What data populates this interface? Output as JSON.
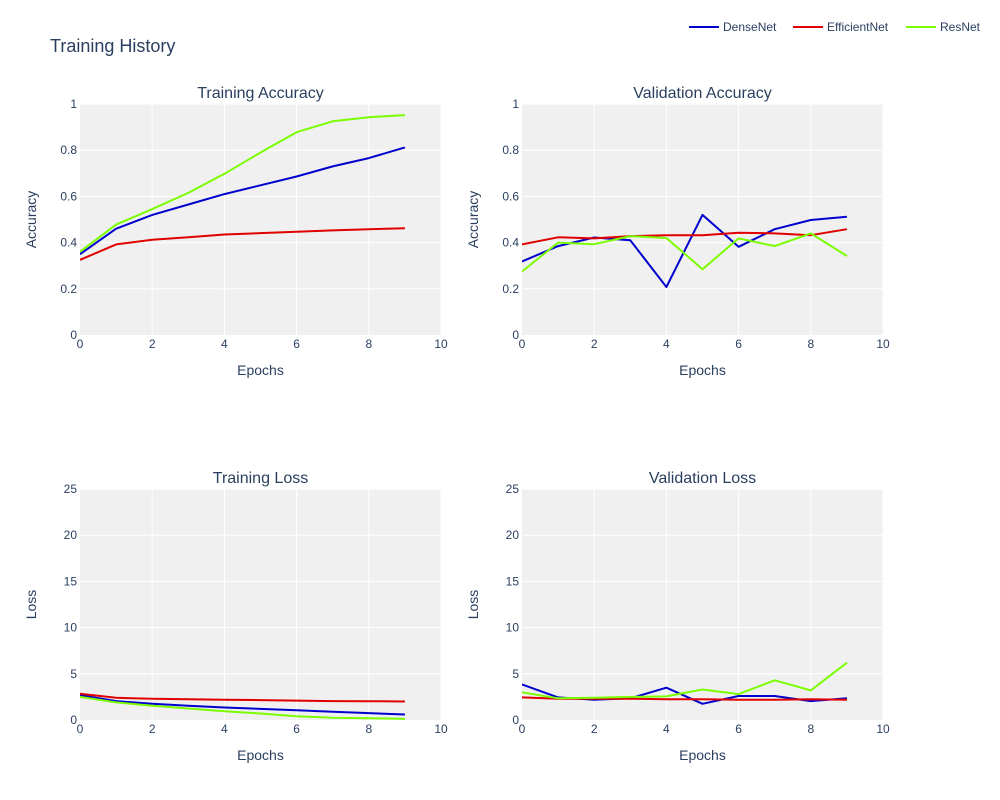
{
  "title": "Training History",
  "colors": {
    "DenseNet": "#0000cd",
    "EfficientNet": "#e00000",
    "ResNet": "#7cfc00",
    "plot_bg": "#f0f0f0",
    "grid": "#ffffff",
    "text": "#2a3f5f"
  },
  "chart_data": [
    {
      "type": "line",
      "title": "Training Accuracy",
      "xlabel": "Epochs",
      "ylabel": "Accuracy",
      "xlim": [
        0,
        10
      ],
      "ylim": [
        0,
        1
      ],
      "xticks": [
        0,
        2,
        4,
        6,
        8,
        10
      ],
      "yticks": [
        0,
        0.2,
        0.4,
        0.6,
        0.8,
        1
      ],
      "ytick_labels": [
        "0",
        "0.2",
        "0.4",
        "0.6",
        "0.8",
        "1"
      ],
      "x": [
        0,
        1,
        2,
        3,
        4,
        5,
        6,
        7,
        8,
        9
      ],
      "series": [
        {
          "name": "DenseNet",
          "values": [
            0.35,
            0.46,
            0.52,
            0.565,
            0.61,
            0.648,
            0.686,
            0.73,
            0.766,
            0.812
          ]
        },
        {
          "name": "EfficientNet",
          "values": [
            0.325,
            0.392,
            0.412,
            0.423,
            0.435,
            0.441,
            0.447,
            0.453,
            0.458,
            0.462
          ]
        },
        {
          "name": "ResNet",
          "values": [
            0.36,
            0.478,
            0.545,
            0.615,
            0.698,
            0.79,
            0.878,
            0.925,
            0.943,
            0.952
          ]
        }
      ]
    },
    {
      "type": "line",
      "title": "Validation Accuracy",
      "xlabel": "Epochs",
      "ylabel": "Accuracy",
      "xlim": [
        0,
        10
      ],
      "ylim": [
        0,
        1
      ],
      "xticks": [
        0,
        2,
        4,
        6,
        8,
        10
      ],
      "yticks": [
        0,
        0.2,
        0.4,
        0.6,
        0.8,
        1
      ],
      "ytick_labels": [
        "0",
        "0.2",
        "0.4",
        "0.6",
        "0.8",
        "1"
      ],
      "x": [
        0,
        1,
        2,
        3,
        4,
        5,
        6,
        7,
        8,
        9
      ],
      "series": [
        {
          "name": "DenseNet",
          "values": [
            0.318,
            0.385,
            0.422,
            0.41,
            0.208,
            0.52,
            0.382,
            0.458,
            0.498,
            0.512
          ]
        },
        {
          "name": "EfficientNet",
          "values": [
            0.392,
            0.423,
            0.418,
            0.428,
            0.432,
            0.432,
            0.443,
            0.44,
            0.432,
            0.458
          ]
        },
        {
          "name": "ResNet",
          "values": [
            0.275,
            0.4,
            0.393,
            0.428,
            0.42,
            0.285,
            0.418,
            0.385,
            0.44,
            0.342
          ]
        }
      ]
    },
    {
      "type": "line",
      "title": "Training Loss",
      "xlabel": "Epochs",
      "ylabel": "Loss",
      "xlim": [
        0,
        10
      ],
      "ylim": [
        0,
        25
      ],
      "xticks": [
        0,
        2,
        4,
        6,
        8,
        10
      ],
      "yticks": [
        0,
        5,
        10,
        15,
        20,
        25
      ],
      "ytick_labels": [
        "0",
        "5",
        "10",
        "15",
        "20",
        "25"
      ],
      "x": [
        0,
        1,
        2,
        3,
        4,
        5,
        6,
        7,
        8,
        9
      ],
      "series": [
        {
          "name": "DenseNet",
          "values": [
            2.7,
            2.05,
            1.75,
            1.55,
            1.35,
            1.2,
            1.05,
            0.9,
            0.75,
            0.6
          ]
        },
        {
          "name": "EfficientNet",
          "values": [
            2.85,
            2.4,
            2.3,
            2.25,
            2.2,
            2.15,
            2.1,
            2.05,
            2.03,
            2.0
          ]
        },
        {
          "name": "ResNet",
          "values": [
            2.5,
            1.9,
            1.55,
            1.25,
            0.95,
            0.7,
            0.4,
            0.25,
            0.2,
            0.12
          ]
        }
      ]
    },
    {
      "type": "line",
      "title": "Validation Loss",
      "xlabel": "Epochs",
      "ylabel": "Loss",
      "xlim": [
        0,
        10
      ],
      "ylim": [
        0,
        25
      ],
      "xticks": [
        0,
        2,
        4,
        6,
        8,
        10
      ],
      "yticks": [
        0,
        5,
        10,
        15,
        20,
        25
      ],
      "ytick_labels": [
        "0",
        "5",
        "10",
        "15",
        "20",
        "25"
      ],
      "x": [
        0,
        1,
        2,
        3,
        4,
        5,
        6,
        7,
        8,
        9
      ],
      "series": [
        {
          "name": "DenseNet",
          "values": [
            3.85,
            2.45,
            2.2,
            2.35,
            3.5,
            1.75,
            2.6,
            2.6,
            2.05,
            2.35
          ]
        },
        {
          "name": "EfficientNet",
          "values": [
            2.45,
            2.3,
            2.3,
            2.3,
            2.25,
            2.25,
            2.2,
            2.2,
            2.25,
            2.2
          ]
        },
        {
          "name": "ResNet",
          "values": [
            3.0,
            2.35,
            2.4,
            2.5,
            2.55,
            3.3,
            2.8,
            4.3,
            3.2,
            6.2
          ]
        }
      ]
    }
  ],
  "legend": {
    "position": "top-right",
    "items": [
      "DenseNet",
      "EfficientNet",
      "ResNet"
    ]
  }
}
